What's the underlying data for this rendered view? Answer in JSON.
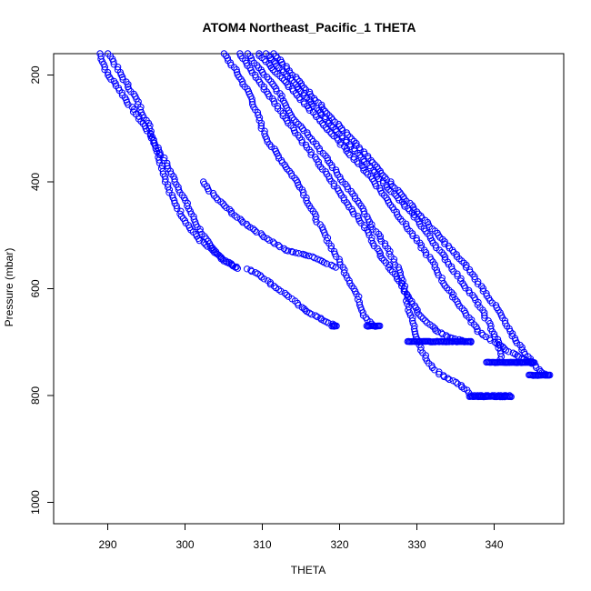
{
  "chart_data": {
    "type": "scatter",
    "title": "ATOM4 Northeast_Pacific_1 THETA",
    "xlabel": "THETA",
    "ylabel": "Pressure (mbar)",
    "xlim": [
      283,
      349
    ],
    "ylim": [
      1040,
      160
    ],
    "y_reversed": true,
    "x_ticks": [
      290,
      300,
      310,
      320,
      330,
      340
    ],
    "y_ticks": [
      200,
      400,
      600,
      800,
      1000
    ],
    "grid": false,
    "marker": "open-circle",
    "color": "#0000ff",
    "profiles": [
      {
        "x": [
          289.0,
          290.0,
          291.2,
          293.0,
          295.0,
          297.0,
          299.5,
          301.5,
          303.2,
          305.0,
          306.2,
          306.8
        ],
        "y": [
          160,
          200,
          220,
          260,
          300,
          350,
          420,
          480,
          520,
          545,
          556,
          562
        ]
      },
      {
        "x": [
          290.2,
          291.5,
          293.5,
          295.5,
          297.0,
          298.0,
          299.5,
          300.8,
          302.0,
          303.5,
          305.0,
          306.5
        ],
        "y": [
          160,
          195,
          240,
          300,
          370,
          420,
          460,
          490,
          510,
          528,
          548,
          560
        ]
      },
      {
        "x": [
          302.2,
          304.0,
          307.0,
          310.0,
          313.0,
          316.5,
          319.5
        ],
        "y": [
          400,
          430,
          470,
          500,
          528,
          540,
          560
        ]
      },
      {
        "x": [
          308.0,
          309.5,
          311.5,
          313.5,
          315.0,
          316.5,
          318.0,
          319.3
        ],
        "y": [
          563,
          572,
          595,
          615,
          635,
          648,
          660,
          668
        ]
      },
      {
        "x": [
          305.0,
          306.5,
          308.5,
          310.0,
          311.0,
          312.5,
          313.5,
          315.0,
          316.0,
          317.0,
          318.5,
          320.0,
          321.5,
          322.5,
          323.2,
          324.5
        ],
        "y": [
          160,
          190,
          240,
          300,
          330,
          360,
          380,
          410,
          440,
          470,
          510,
          550,
          590,
          620,
          650,
          670
        ]
      },
      {
        "x": [
          307.0,
          309.0,
          311.0,
          313.5,
          316.0,
          318.5,
          320.5,
          322.0,
          323.5,
          325.0,
          326.5,
          328.0,
          329.0,
          330.0,
          331.0,
          332.5,
          334.0,
          336.0,
          337.0
        ],
        "y": [
          160,
          200,
          240,
          290,
          340,
          390,
          430,
          460,
          490,
          530,
          560,
          590,
          620,
          640,
          660,
          678,
          690,
          698,
          700
        ]
      },
      {
        "x": [
          308.0,
          310.0,
          312.0,
          314.0,
          316.5,
          318.5,
          320.5,
          322.5,
          324.0,
          326.0,
          327.5,
          328.5,
          329.0,
          329.8,
          330.5,
          331.5,
          333.0,
          335.0,
          336.5,
          337.0,
          340.0,
          342.0
        ],
        "y": [
          160,
          195,
          230,
          280,
          320,
          360,
          400,
          440,
          480,
          520,
          560,
          600,
          640,
          680,
          710,
          740,
          760,
          775,
          790,
          800,
          800,
          800
        ]
      },
      {
        "x": [
          309.5,
          311.5,
          314.0,
          316.5,
          319.0,
          321.5,
          324.0,
          326.0,
          328.0,
          330.0,
          332.0,
          333.5,
          335.0,
          336.5,
          338.0,
          340.0,
          342.0,
          343.5,
          345.0
        ],
        "y": [
          160,
          190,
          230,
          270,
          310,
          350,
          390,
          430,
          470,
          510,
          550,
          590,
          620,
          650,
          680,
          700,
          718,
          730,
          738
        ]
      },
      {
        "x": [
          310.5,
          312.5,
          315.0,
          317.5,
          320.0,
          322.5,
          325.0,
          327.5,
          330.0,
          332.0,
          334.0,
          336.0,
          338.0,
          339.5,
          340.5,
          341.0,
          343.0,
          345.0
        ],
        "y": [
          160,
          190,
          230,
          270,
          310,
          350,
          390,
          430,
          470,
          510,
          550,
          590,
          630,
          670,
          700,
          738,
          738,
          738
        ]
      },
      {
        "x": [
          311.5,
          314.0,
          316.5,
          319.0,
          321.5,
          324.0,
          326.5,
          329.0,
          331.5,
          334.0,
          336.5,
          338.5,
          340.5,
          342.0,
          343.5,
          345.0,
          346.0,
          347.0
        ],
        "y": [
          160,
          200,
          240,
          280,
          320,
          360,
          400,
          440,
          480,
          520,
          560,
          600,
          640,
          680,
          710,
          740,
          755,
          762
        ]
      }
    ],
    "horizontal_runs": [
      {
        "x_from": 319.0,
        "x_to": 319.6,
        "y": 670
      },
      {
        "x_from": 323.5,
        "x_to": 325.2,
        "y": 670
      },
      {
        "x_from": 328.8,
        "x_to": 337.0,
        "y": 699
      },
      {
        "x_from": 336.8,
        "x_to": 342.2,
        "y": 802
      },
      {
        "x_from": 339.0,
        "x_to": 345.2,
        "y": 738
      },
      {
        "x_from": 344.5,
        "x_to": 347.2,
        "y": 762
      }
    ]
  }
}
